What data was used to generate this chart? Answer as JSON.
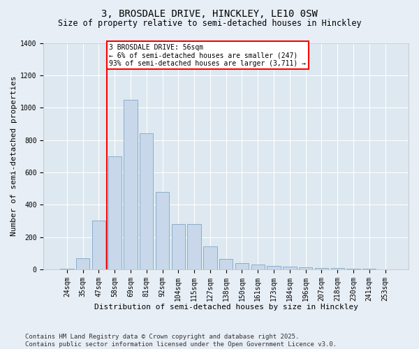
{
  "title1": "3, BROSDALE DRIVE, HINCKLEY, LE10 0SW",
  "title2": "Size of property relative to semi-detached houses in Hinckley",
  "xlabel": "Distribution of semi-detached houses by size in Hinckley",
  "ylabel": "Number of semi-detached properties",
  "categories": [
    "24sqm",
    "35sqm",
    "47sqm",
    "58sqm",
    "69sqm",
    "81sqm",
    "92sqm",
    "104sqm",
    "115sqm",
    "127sqm",
    "138sqm",
    "150sqm",
    "161sqm",
    "173sqm",
    "184sqm",
    "196sqm",
    "207sqm",
    "218sqm",
    "230sqm",
    "241sqm",
    "253sqm"
  ],
  "values": [
    5,
    68,
    300,
    700,
    1050,
    840,
    480,
    278,
    278,
    140,
    65,
    40,
    28,
    22,
    18,
    13,
    9,
    6,
    4,
    2,
    1
  ],
  "bar_color": "#c8d8ea",
  "bar_edge_color": "#8aaecb",
  "vline_color": "red",
  "vline_x": 2.5,
  "annotation_text": "3 BROSDALE DRIVE: 56sqm\n← 6% of semi-detached houses are smaller (247)\n93% of semi-detached houses are larger (3,711) →",
  "annotation_box_color": "white",
  "annotation_box_edge": "red",
  "ylim": [
    0,
    1400
  ],
  "yticks": [
    0,
    200,
    400,
    600,
    800,
    1000,
    1200,
    1400
  ],
  "footer": "Contains HM Land Registry data © Crown copyright and database right 2025.\nContains public sector information licensed under the Open Government Licence v3.0.",
  "bg_color": "#e8eef5",
  "plot_bg_color": "#dde8f0",
  "grid_color": "white",
  "title_fontsize": 10,
  "subtitle_fontsize": 8.5,
  "axis_label_fontsize": 8,
  "tick_fontsize": 7,
  "footer_fontsize": 6.5,
  "annot_fontsize": 7
}
